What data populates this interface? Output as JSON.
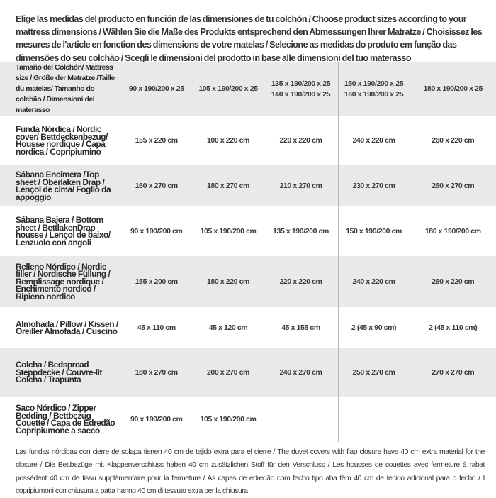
{
  "intro": "Elige las medidas del producto en función de las dimensiones de tu colchón / Choose product sizes according to your mattress dimensions / Wählen Sie die Maße des Produkts entsprechend den Abmessungen Ihrer Matratze / Choisissez les mesures de l'article en fonction des dimensions de votre matelas / Selecione as medidas do produto em função das dimensões do seu colchão / Scegli le dimensioni del prodotto in base alle dimensioni del tuo materasso",
  "table": {
    "header": {
      "label": "Tamaño del Colchón/ Mattress size / Größe der Matratze /Taille du matelas/ Tamanho do colchão / Dimensioni del materasso",
      "sizes": [
        "90 x 190/200 x 25",
        "105 x 190/200 x 25",
        "135 x 190/200 x 25\n140 x 190/200 x 25",
        "150 x 190/200 x 25\n160 x 190/200 x 25",
        "180 x 190/200 x 25"
      ]
    },
    "rows": [
      {
        "label": "Funda Nórdica /  Nordic cover/ Bettdeckenbezug/ Housse nordique  / Capa nordica / Copripiumino",
        "values": [
          "155 x 220 cm",
          "100 x 220 cm",
          "220 x 220 cm",
          "240 x 220 cm",
          "260 x 220 cm"
        ]
      },
      {
        "label": "Sábana Encimera /Top sheet / Oberlaken Drap / Lençol de cima/ Foglio da appoggio",
        "values": [
          "160 x 270 cm",
          "180 x 270 cm",
          "210 x 270 cm",
          "230 x 270 cm",
          "260 x 270 cm"
        ]
      },
      {
        "label": "Sábana Bajera / Bottom sheet / BettlakenDrap housse / Lençol de baixo/ Lenzuolo con angoli",
        "values": [
          "90 x 190/200 cm",
          "105 x 190/200 cm",
          "135 x 190/200 cm",
          "150 x 190/200 cm",
          "180 x 190/200 cm"
        ]
      },
      {
        "label": "Relleno Nórdico / Nordic filler / Nordische Füllung / Remplissage nordique / Enchimento nordico / Ripieno nordico",
        "values": [
          "155 x 200 cm",
          "180 x 220 cm",
          "220 x 220 cm",
          "240 x 220 cm",
          "260 x 220 cm"
        ]
      },
      {
        "label": "Almohada  / Pillow / Kissen / Oreiller Almofada / Cuscino",
        "values": [
          "45 x 110 cm",
          "45 x 120 cm",
          "45 x 155 cm",
          "2 (45 x 90 cm)",
          "2 (45 x 110 cm)"
        ]
      },
      {
        "label": "Colcha / Bedspread Steppdecke / Couvre-lit Colcha / Trapunta",
        "values": [
          "180 x 270 cm",
          "200 x 270 cm",
          "240 x 270 cm",
          "250 x 270 cm",
          "270 x 270 cm"
        ]
      },
      {
        "label": "Saco Nórdico / Zipper Bedding / Bettbezug Couette  / Capa de Edredão Copripiumone a sacco",
        "values": [
          "90 x 190/200 cm",
          "105 x 190/200 cm",
          "",
          "",
          ""
        ]
      }
    ]
  },
  "note": "Las fundas nórdicas con cierre de solapa tienen 40 cm de tejido extra para el cierre   / The duvet covers with flap closure have 40 cm extra material for the closure / Die Bettbezüge mit Klappenverschluss haben 40 cm zusätzlichen Stoff für den Verschluss / Les housses de couettes avec fermeture à rabat possèdent 40 cm de tissu supplémentaire pour la fermeture / As capas de edredão com fecho tipo aba têm 40 cm de tecido adicional para o fecho / I copripiumoni con chiusura a patta hanno 40 cm di tessuto extra per la chiusura"
}
